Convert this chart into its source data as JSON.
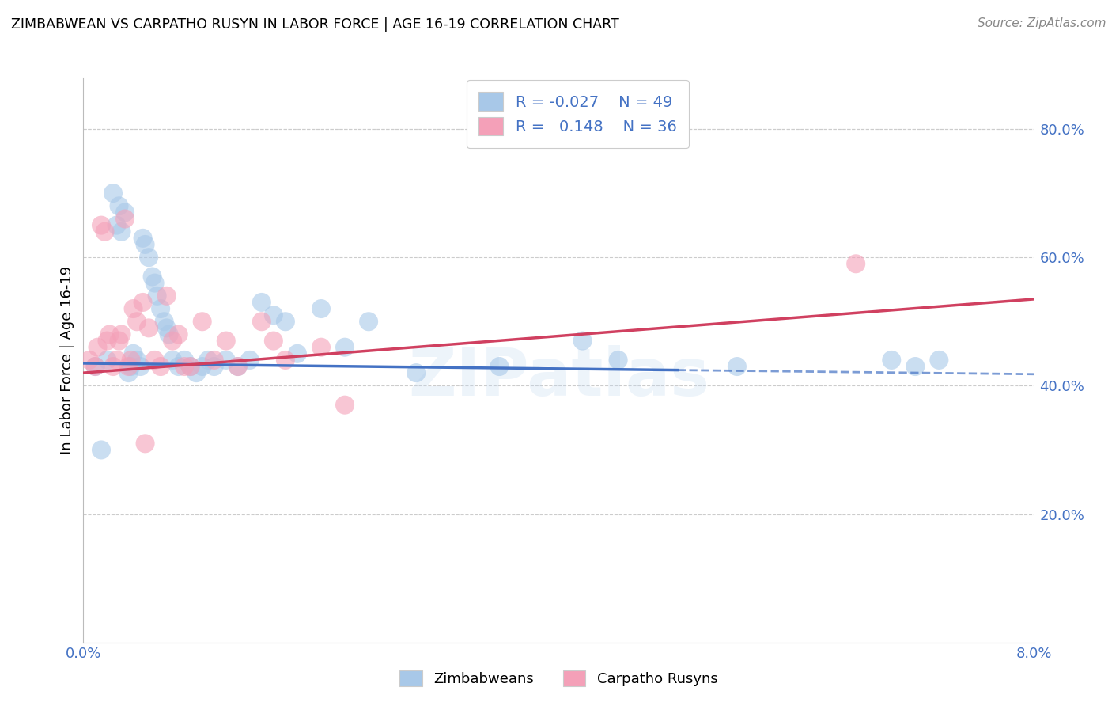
{
  "title": "ZIMBABWEAN VS CARPATHO RUSYN IN LABOR FORCE | AGE 16-19 CORRELATION CHART",
  "source": "Source: ZipAtlas.com",
  "ylabel": "In Labor Force | Age 16-19",
  "right_yticks": [
    20.0,
    40.0,
    60.0,
    80.0
  ],
  "xmin": 0.0,
  "xmax": 8.0,
  "ymin": 0.0,
  "ymax": 88.0,
  "blue_R": -0.027,
  "blue_N": 49,
  "pink_R": 0.148,
  "pink_N": 36,
  "blue_color": "#a8c8e8",
  "pink_color": "#f4a0b8",
  "blue_line_color": "#4472c4",
  "pink_line_color": "#d04060",
  "legend_label_blue": "Zimbabweans",
  "legend_label_pink": "Carpatho Rusyns",
  "watermark": "ZIPatlas",
  "blue_scatter_x": [
    0.1,
    0.2,
    0.25,
    0.28,
    0.3,
    0.32,
    0.35,
    0.38,
    0.4,
    0.42,
    0.45,
    0.48,
    0.5,
    0.52,
    0.55,
    0.58,
    0.6,
    0.62,
    0.65,
    0.68,
    0.7,
    0.72,
    0.75,
    0.8,
    0.85,
    0.9,
    0.95,
    1.0,
    1.05,
    1.1,
    1.2,
    1.3,
    1.4,
    1.5,
    1.6,
    1.7,
    1.8,
    2.0,
    2.2,
    2.4,
    2.8,
    3.5,
    4.2,
    4.5,
    5.5,
    6.8,
    7.0,
    7.2,
    0.15
  ],
  "blue_scatter_y": [
    43,
    44,
    70,
    65,
    68,
    64,
    67,
    42,
    43,
    45,
    44,
    43,
    63,
    62,
    60,
    57,
    56,
    54,
    52,
    50,
    49,
    48,
    44,
    43,
    44,
    43,
    42,
    43,
    44,
    43,
    44,
    43,
    44,
    53,
    51,
    50,
    45,
    52,
    46,
    50,
    42,
    43,
    47,
    44,
    43,
    44,
    43,
    44,
    30
  ],
  "pink_scatter_x": [
    0.05,
    0.1,
    0.15,
    0.18,
    0.2,
    0.22,
    0.25,
    0.28,
    0.3,
    0.35,
    0.38,
    0.4,
    0.42,
    0.45,
    0.5,
    0.55,
    0.6,
    0.65,
    0.7,
    0.75,
    0.8,
    0.85,
    0.9,
    1.0,
    1.1,
    1.2,
    1.3,
    1.5,
    1.6,
    1.7,
    2.0,
    2.2,
    6.5,
    0.12,
    0.32,
    0.52
  ],
  "pink_scatter_y": [
    44,
    43,
    65,
    64,
    47,
    48,
    43,
    44,
    47,
    66,
    43,
    44,
    52,
    50,
    53,
    49,
    44,
    43,
    54,
    47,
    48,
    43,
    43,
    50,
    44,
    47,
    43,
    50,
    47,
    44,
    46,
    37,
    59,
    46,
    48,
    31
  ],
  "blue_trend_x0": 0.0,
  "blue_trend_y0": 43.5,
  "blue_trend_x1": 8.0,
  "blue_trend_y1": 41.8,
  "pink_trend_x0": 0.0,
  "pink_trend_y0": 42.0,
  "pink_trend_x1": 8.0,
  "pink_trend_y1": 53.5
}
